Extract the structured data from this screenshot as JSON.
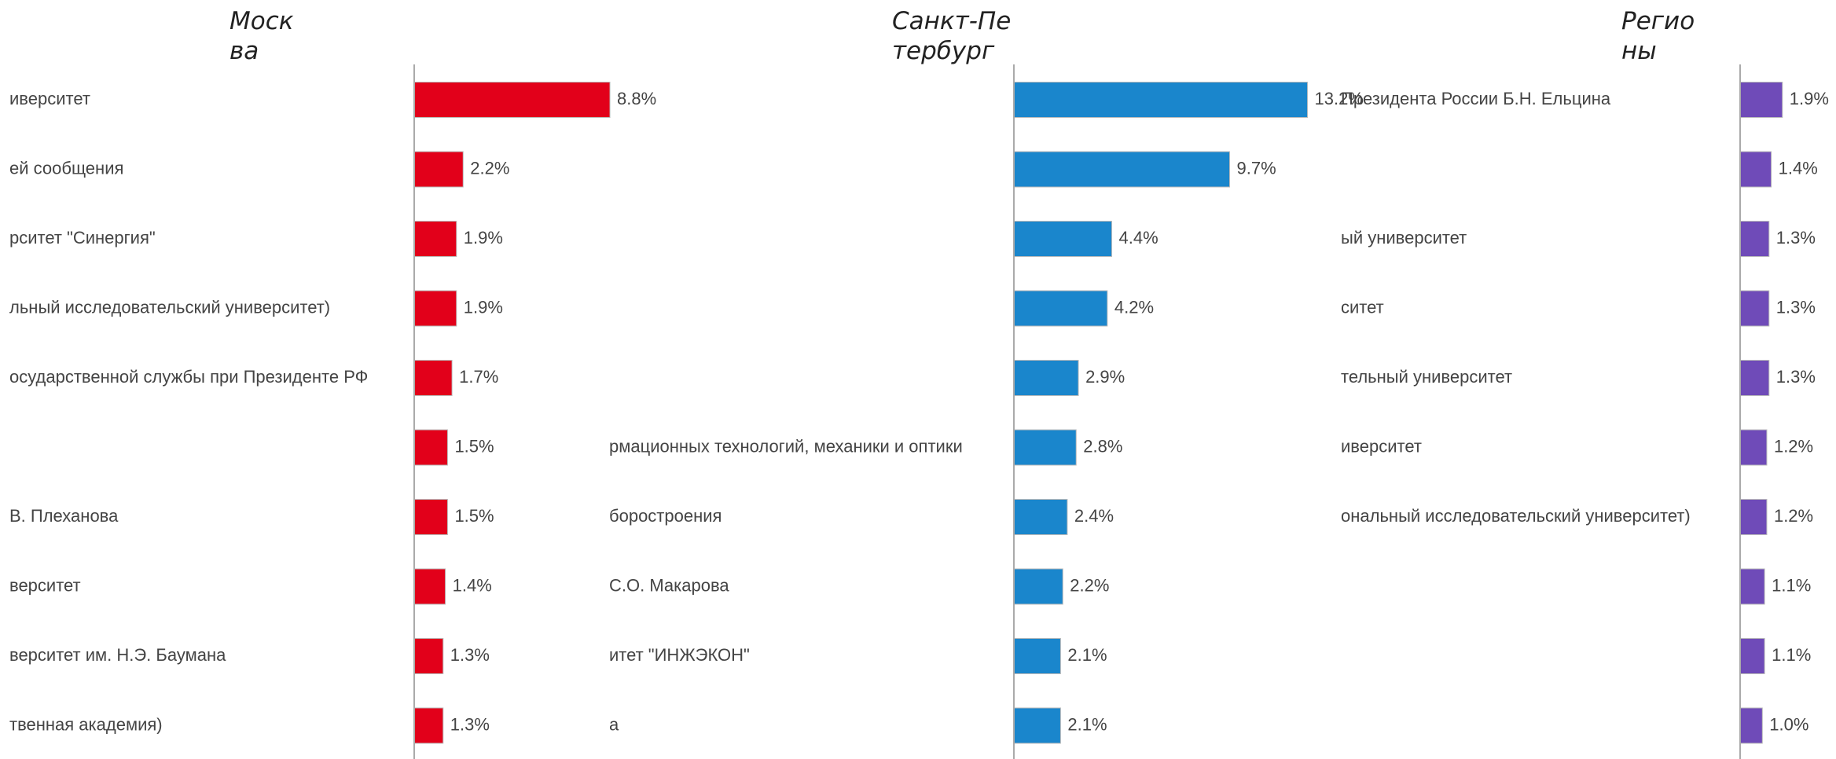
{
  "chart_data": [
    {
      "type": "bar",
      "orientation": "horizontal",
      "title": "Москва",
      "color": "#e2001a",
      "xlim": [
        0,
        14
      ],
      "categories": [
        "иверситет",
        "ей сообщения",
        "рситет \"Синергия\"",
        "льный исследовательский университет)",
        "осударственной службы при Президенте РФ",
        null,
        "В. Плеханова",
        "верситет",
        "верситет им. Н.Э. Баумана",
        "твенная академия)"
      ],
      "values": [
        8.8,
        2.2,
        1.9,
        1.9,
        1.7,
        1.5,
        1.5,
        1.4,
        1.3,
        1.3
      ],
      "value_labels": [
        "8.8%",
        "2.2%",
        "1.9%",
        "1.9%",
        "1.7%",
        "1.5%",
        "1.5%",
        "1.4%",
        "1.3%",
        "1.3%"
      ]
    },
    {
      "type": "bar",
      "orientation": "horizontal",
      "title": "Санкт-Петербург",
      "color": "#1a86cc",
      "xlim": [
        0,
        14
      ],
      "categories": [
        null,
        null,
        null,
        null,
        null,
        "рмационных технологий, механики и оптики",
        "боростроения",
        "С.О. Макарова",
        "итет \"ИНЖЭКОН\"",
        "а"
      ],
      "values": [
        13.2,
        9.7,
        4.4,
        4.2,
        2.9,
        2.8,
        2.4,
        2.2,
        2.1,
        2.1
      ],
      "value_labels": [
        "13.2%",
        "9.7%",
        "4.4%",
        "4.2%",
        "2.9%",
        "2.8%",
        "2.4%",
        "2.2%",
        "2.1%",
        "2.1%"
      ]
    },
    {
      "type": "bar",
      "orientation": "horizontal",
      "title": "Регионы",
      "color": "#6f4bb8",
      "xlim": [
        0,
        14
      ],
      "categories": [
        "Президента России Б.Н. Ельцина",
        null,
        "ый университет",
        "ситет",
        "тельный университет",
        "иверситет",
        "ональный исследовательский университет)",
        null,
        null,
        null
      ],
      "values": [
        1.9,
        1.4,
        1.3,
        1.3,
        1.3,
        1.2,
        1.2,
        1.1,
        1.1,
        1.0
      ],
      "value_labels": [
        "1.9%",
        "1.4%",
        "1.3%",
        "1.3%",
        "1.3%",
        "1.2%",
        "1.2%",
        "1.1%",
        "1.1%",
        "1.0%"
      ]
    }
  ]
}
